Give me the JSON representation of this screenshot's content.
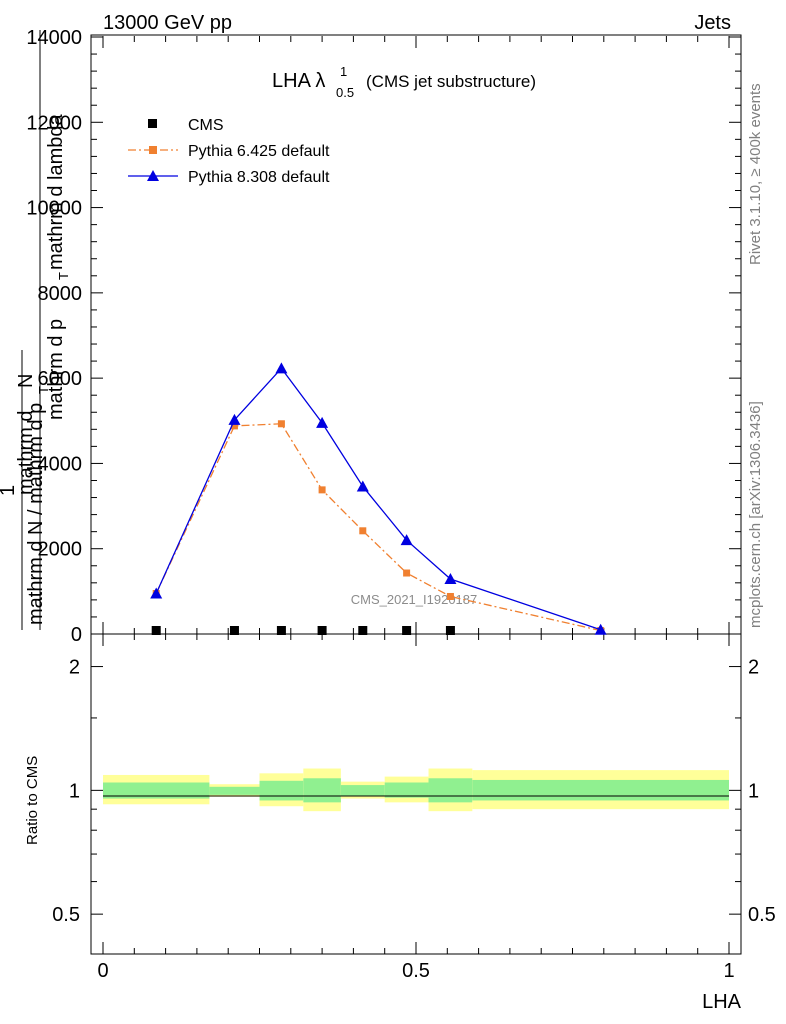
{
  "header": {
    "left": "13000 GeV pp",
    "right": "Jets"
  },
  "side": {
    "rivet": "Rivet 3.1.10, ≥ 400k events",
    "mcplots": "mcplots.cern.ch [arXiv:1306.3436]"
  },
  "watermark": "CMS_2021_I1920187",
  "chart_data": [
    {
      "type": "line",
      "title_main": "LHA λ",
      "title_sup": "1",
      "title_sub": "0.5",
      "title_rest": "(CMS jet substructure)",
      "ylabel_num_left": "mathrm d",
      "ylabel_num_right": "N",
      "ylabel_den": "mathrm d p",
      "ylabel_den_sub": "T",
      "ylabel_den_rest": " mathrm d lambda",
      "ylabel_prefix_num": "1",
      "ylabel_prefix_den": "mathrm d N / mathrm d p",
      "ylabel_prefix_den_sub": "T",
      "ylim": [
        0,
        14000
      ],
      "yticks": [
        0,
        2000,
        4000,
        6000,
        8000,
        10000,
        12000,
        14000
      ],
      "ytick_labels": [
        "0",
        "2000",
        "4000",
        "6000",
        "8000",
        "10000",
        "12000",
        "14000"
      ],
      "xlim": [
        0,
        1
      ],
      "legend_position": "top-left",
      "series": [
        {
          "name": "CMS",
          "color": "#000000",
          "marker": "square",
          "x": [
            0.085,
            0.21,
            0.285,
            0.35,
            0.415,
            0.485,
            0.555
          ],
          "y": [
            0,
            0,
            0,
            0,
            0,
            0,
            0
          ]
        },
        {
          "name": "Pythia 6.425 default",
          "color": "#f08030",
          "marker": "square",
          "linestyle": "dashdot",
          "x": [
            0.085,
            0.21,
            0.285,
            0.35,
            0.415,
            0.485,
            0.555,
            0.795
          ],
          "y": [
            950,
            4880,
            4930,
            3380,
            2420,
            1430,
            880,
            80
          ]
        },
        {
          "name": "Pythia 8.308 default",
          "color": "#0000e0",
          "marker": "triangle",
          "linestyle": "solid",
          "x": [
            0.085,
            0.21,
            0.285,
            0.35,
            0.415,
            0.485,
            0.555,
            0.795
          ],
          "y": [
            950,
            5020,
            6230,
            4950,
            3460,
            2200,
            1290,
            100
          ]
        }
      ]
    },
    {
      "type": "area",
      "ylabel": "Ratio to CMS",
      "xlabel": "LHA",
      "ylim": [
        0.4,
        2.4
      ],
      "ylog": true,
      "yticks": [
        0.5,
        1,
        2
      ],
      "ytick_labels": [
        "0.5",
        "1",
        "2"
      ],
      "xticks": [
        0,
        0.5,
        1
      ],
      "xtick_labels": [
        "0",
        "0.5",
        "1"
      ],
      "bins": [
        0,
        0.17,
        0.25,
        0.32,
        0.38,
        0.45,
        0.52,
        0.59,
        1.0
      ],
      "band_inner": {
        "color": "#90f090",
        "lo": [
          0.955,
          0.975,
          0.945,
          0.935,
          0.97,
          0.96,
          0.935,
          0.945
        ],
        "hi": [
          1.045,
          1.02,
          1.055,
          1.07,
          1.03,
          1.045,
          1.07,
          1.06
        ]
      },
      "band_outer": {
        "color": "#ffff99",
        "lo": [
          0.925,
          0.965,
          0.915,
          0.89,
          0.955,
          0.935,
          0.89,
          0.9
        ],
        "hi": [
          1.09,
          1.035,
          1.1,
          1.13,
          1.05,
          1.08,
          1.13,
          1.12
        ]
      }
    }
  ]
}
